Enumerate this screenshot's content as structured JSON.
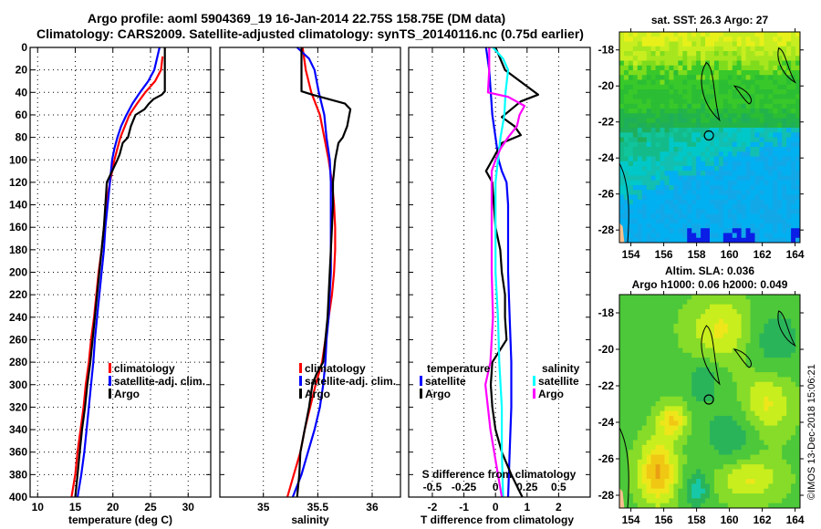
{
  "figure": {
    "title_line1": "Argo profile: aoml 5904369_19 16-Jan-2014 22.75S 158.75E (DM data)",
    "title_line2": "Climatology: CARS2009. Satellite-adjusted climatology: synTS_20140116.nc (0.75d earlier)",
    "stamp": "©IMOS 13-Dec-2018 15:06:21",
    "colors": {
      "climatology": "#ff0000",
      "satellite_adj": "#0000ff",
      "argo": "#000000",
      "sal_satellite": "#00ffff",
      "sal_argo": "#ff00ff"
    }
  },
  "chart_data": [
    {
      "id": "temperature",
      "type": "line",
      "title": "",
      "xlabel": "temperature (deg C)",
      "ylabel": "",
      "xlim": [
        9,
        33
      ],
      "ylim": [
        400,
        0
      ],
      "xticks": [
        10,
        15,
        20,
        25,
        30
      ],
      "yticks": [
        0,
        20,
        40,
        60,
        80,
        100,
        120,
        140,
        160,
        180,
        200,
        220,
        240,
        260,
        280,
        300,
        320,
        340,
        360,
        380,
        400
      ],
      "grid": true,
      "legend": {
        "position": "center-right",
        "entries": [
          "climatology",
          "satellite-adj. clim.",
          "Argo"
        ]
      },
      "series": [
        {
          "name": "climatology",
          "color": "#ff0000",
          "depth": [
            8,
            20,
            30,
            40,
            50,
            60,
            70,
            80,
            90,
            100,
            120,
            140,
            160,
            180,
            200,
            220,
            240,
            260,
            280,
            300,
            320,
            340,
            360,
            380,
            400
          ],
          "values": [
            26.6,
            26.4,
            25.6,
            24.3,
            23.2,
            22.2,
            21.6,
            21.0,
            20.6,
            20.2,
            19.6,
            19.1,
            18.8,
            18.5,
            18.1,
            17.8,
            17.5,
            17.1,
            16.8,
            16.4,
            16.1,
            15.7,
            15.3,
            15.0,
            14.5
          ]
        },
        {
          "name": "satellite-adj. clim.",
          "color": "#0000ff",
          "depth": [
            0,
            20,
            30,
            40,
            50,
            60,
            70,
            80,
            90,
            100,
            120,
            140,
            160,
            180,
            200,
            220,
            240,
            260,
            280,
            300,
            320,
            340,
            360,
            380,
            400
          ],
          "values": [
            26.2,
            25.5,
            24.7,
            23.6,
            22.6,
            21.8,
            21.1,
            20.6,
            20.2,
            19.9,
            19.6,
            19.3,
            19.0,
            18.8,
            18.5,
            18.2,
            17.9,
            17.6,
            17.4,
            17.1,
            16.8,
            16.5,
            16.2,
            15.8,
            15.3
          ]
        },
        {
          "name": "Argo",
          "color": "#000000",
          "depth": [
            0,
            20,
            39,
            42,
            46,
            50,
            55,
            60,
            70,
            80,
            85,
            95,
            100,
            120,
            140,
            160,
            180,
            200,
            220,
            240,
            260,
            280,
            300,
            320,
            340,
            360,
            380,
            400
          ],
          "values": [
            26.9,
            26.9,
            26.9,
            26.5,
            25.4,
            24.8,
            24.2,
            23.0,
            22.4,
            22.0,
            21.3,
            20.9,
            20.6,
            19.2,
            19.0,
            18.8,
            18.5,
            18.2,
            17.9,
            17.6,
            17.3,
            17.0,
            16.6,
            16.3,
            15.9,
            15.6,
            15.3,
            15.0
          ]
        }
      ]
    },
    {
      "id": "salinity",
      "type": "line",
      "xlabel": "salinity",
      "xlim": [
        34.6,
        36.26
      ],
      "ylim": [
        400,
        0
      ],
      "xticks": [
        35,
        35.5,
        36
      ],
      "xticklabels": [
        "35",
        "35.5",
        "36"
      ],
      "grid": true,
      "legend": {
        "position": "center-right",
        "entries": [
          "climatology",
          "satellite-adj. clim.",
          "Argo"
        ]
      },
      "series": [
        {
          "name": "climatology",
          "color": "#ff0000",
          "depth": [
            0,
            20,
            40,
            60,
            80,
            100,
            120,
            140,
            160,
            180,
            200,
            220,
            240,
            260,
            280,
            300,
            320,
            340,
            360,
            380,
            400
          ],
          "values": [
            35.36,
            35.39,
            35.44,
            35.52,
            35.56,
            35.6,
            35.63,
            35.65,
            35.66,
            35.66,
            35.65,
            35.63,
            35.6,
            35.57,
            35.54,
            35.48,
            35.43,
            35.38,
            35.34,
            35.28,
            35.22
          ]
        },
        {
          "name": "satellite-adj. clim.",
          "color": "#0000ff",
          "depth": [
            0,
            10,
            20,
            40,
            60,
            80,
            100,
            120,
            140,
            160,
            180,
            200,
            220,
            240,
            260,
            280,
            300,
            320,
            340,
            360,
            380,
            400
          ],
          "values": [
            35.31,
            35.42,
            35.47,
            35.51,
            35.56,
            35.58,
            35.61,
            35.62,
            35.62,
            35.62,
            35.62,
            35.62,
            35.61,
            35.6,
            35.58,
            35.57,
            35.55,
            35.52,
            35.47,
            35.41,
            35.35,
            35.27
          ]
        },
        {
          "name": "Argo",
          "color": "#000000",
          "depth": [
            0,
            39,
            42,
            46,
            50,
            55,
            60,
            70,
            80,
            85,
            95,
            100,
            120,
            140,
            160,
            180,
            200,
            220,
            240,
            260,
            280,
            290,
            300,
            320,
            340,
            360,
            380,
            400
          ],
          "values": [
            35.35,
            35.35,
            35.45,
            35.6,
            35.75,
            35.8,
            35.79,
            35.77,
            35.73,
            35.69,
            35.67,
            35.66,
            35.64,
            35.64,
            35.63,
            35.62,
            35.61,
            35.6,
            35.59,
            35.57,
            35.55,
            35.49,
            35.45,
            35.42,
            35.38,
            35.34,
            35.33,
            35.31
          ]
        }
      ]
    },
    {
      "id": "difference",
      "type": "line",
      "xlabel": "T difference from climatology",
      "xlabel_top": "S difference from climatology",
      "xlim": [
        -2.75,
        3.0
      ],
      "ylim": [
        400,
        0
      ],
      "xticks": [
        -2,
        -1,
        0,
        1,
        2
      ],
      "xticks_S": [
        -0.5,
        -0.25,
        0,
        0.25,
        0.5
      ],
      "xticklabels_S": [
        "-0.5",
        "-0.25",
        "0",
        "0.25",
        "0.5"
      ],
      "grid": true,
      "legend": {
        "position": "center",
        "groups": [
          {
            "title": "temperature",
            "entries": [
              "satellite",
              "Argo"
            ]
          },
          {
            "title": "salinity",
            "entries": [
              "satellite",
              "Argo"
            ]
          }
        ]
      },
      "series": [
        {
          "name": "temperature satellite",
          "color": "#0000ff",
          "depth": [
            0,
            20,
            40,
            60,
            80,
            100,
            110,
            120,
            140,
            160,
            200,
            240,
            280,
            320,
            360,
            400
          ],
          "values": [
            -0.3,
            -0.2,
            -0.15,
            -0.1,
            0.0,
            0.1,
            0.2,
            0.35,
            0.4,
            0.4,
            0.4,
            0.45,
            0.5,
            0.5,
            0.45,
            0.4
          ]
        },
        {
          "name": "temperature Argo",
          "color": "#000000",
          "depth": [
            0,
            20,
            42,
            48,
            55,
            62,
            70,
            78,
            85,
            95,
            110,
            120,
            140,
            160,
            180,
            200,
            220,
            240,
            260,
            280,
            300,
            320,
            340,
            360,
            380,
            400
          ],
          "values": [
            0.0,
            0.3,
            1.35,
            0.8,
            0.5,
            0.2,
            0.6,
            0.8,
            0.2,
            0.0,
            -0.3,
            -0.1,
            -0.05,
            0.0,
            0.15,
            0.2,
            0.3,
            0.3,
            0.35,
            -0.1,
            -0.15,
            -0.1,
            0.0,
            0.2,
            0.5,
            0.85
          ]
        },
        {
          "name": "salinity satellite",
          "color": "#00ffff",
          "depth": [
            0,
            10,
            20,
            40,
            60,
            80,
            100,
            120,
            160,
            200,
            240,
            280,
            320,
            360,
            400
          ],
          "values": [
            -0.02,
            0.06,
            0.1,
            0.08,
            0.07,
            0.04,
            0.02,
            0.0,
            0.0,
            0.0,
            0.02,
            0.03,
            0.05,
            0.05,
            0.06
          ]
        },
        {
          "name": "salinity Argo",
          "color": "#ff00ff",
          "depth": [
            0,
            20,
            40,
            44,
            52,
            60,
            70,
            80,
            90,
            100,
            110,
            120,
            160,
            200,
            240,
            280,
            300,
            340,
            380,
            400
          ],
          "values": [
            -0.05,
            -0.05,
            -0.06,
            0.1,
            0.23,
            0.19,
            0.17,
            0.1,
            0.04,
            0.0,
            -0.03,
            -0.03,
            -0.03,
            -0.03,
            -0.02,
            -0.04,
            -0.08,
            -0.04,
            0.02,
            0.05
          ]
        }
      ]
    },
    {
      "id": "sst-map",
      "type": "heatmap",
      "title": "sat. SST: 26.3 Argo: 27",
      "xlim": [
        153.3,
        164.3
      ],
      "ylim": [
        -28.7,
        -17.0
      ],
      "xticks": [
        154,
        156,
        158,
        160,
        162,
        164
      ],
      "yticks": [
        -18,
        -20,
        -22,
        -24,
        -26,
        -28
      ],
      "profile_location": {
        "lon": 158.75,
        "lat": -22.75
      }
    },
    {
      "id": "sla-map",
      "type": "heatmap",
      "title": "Altim. SLA: 0.036",
      "subtitle": "Argo h1000: 0.06 h2000: 0.049",
      "xlim": [
        153.3,
        164.3
      ],
      "ylim": [
        -28.7,
        -17.0
      ],
      "xticks": [
        154,
        156,
        158,
        160,
        162,
        164
      ],
      "yticks": [
        -18,
        -20,
        -22,
        -24,
        -26,
        -28
      ],
      "profile_location": {
        "lon": 158.75,
        "lat": -22.75
      }
    }
  ]
}
